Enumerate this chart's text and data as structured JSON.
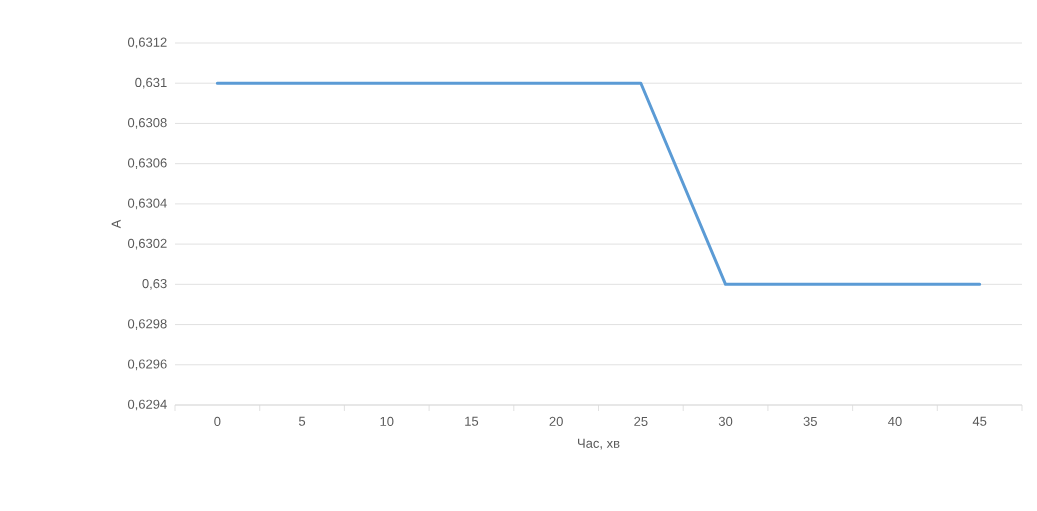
{
  "chart_data": {
    "type": "line",
    "xlabel": "Час, хв",
    "ylabel": "A",
    "categories": [
      "0",
      "5",
      "10",
      "15",
      "20",
      "25",
      "30",
      "35",
      "40",
      "45"
    ],
    "series": [
      {
        "color": "#5b9bd5",
        "values": [
          0.631,
          0.631,
          0.631,
          0.631,
          0.631,
          0.631,
          0.63,
          0.63,
          0.63,
          0.63
        ]
      }
    ],
    "ylim": [
      0.6294,
      0.6312
    ],
    "yticks": [
      {
        "value": 0.6294,
        "label": "0,6294"
      },
      {
        "value": 0.6296,
        "label": "0,6296"
      },
      {
        "value": 0.6298,
        "label": "0,6298"
      },
      {
        "value": 0.63,
        "label": "0,63"
      },
      {
        "value": 0.6302,
        "label": "0,6302"
      },
      {
        "value": 0.6304,
        "label": "0,6304"
      },
      {
        "value": 0.6306,
        "label": "0,6306"
      },
      {
        "value": 0.6308,
        "label": "0,6308"
      },
      {
        "value": 0.631,
        "label": "0,631"
      },
      {
        "value": 0.6312,
        "label": "0,6312"
      }
    ],
    "grid": "y"
  }
}
